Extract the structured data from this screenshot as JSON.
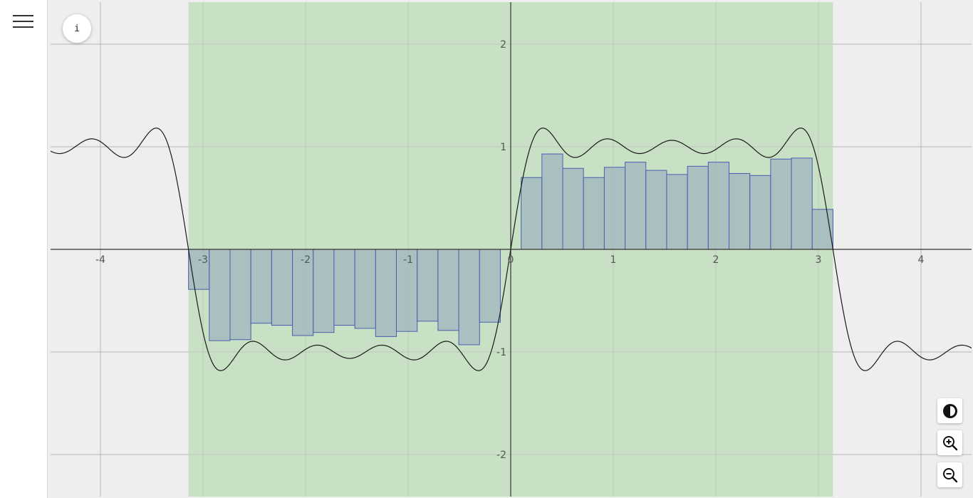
{
  "info_button": {
    "label": "i"
  },
  "toolbar": {
    "menu_icon": "hamburger-menu-icon",
    "contrast_icon": "contrast-icon",
    "zoom_in_icon": "zoom-in-icon",
    "zoom_out_icon": "zoom-out-icon"
  },
  "colors": {
    "plot_background": "#eeeeee",
    "shaded_interval": "#c8e0c4",
    "bar_fill": "#a4b9c0",
    "bar_stroke": "#4a5fb0",
    "curve": "#1a1a1a",
    "grid": "#b7b7b7",
    "axis": "#333333"
  },
  "chart_data": {
    "type": "bar",
    "title": "",
    "xlabel": "",
    "ylabel": "",
    "xlim": [
      -4.5,
      4.5
    ],
    "ylim": [
      -2.4,
      2.4
    ],
    "x_ticks": [
      -4,
      -3,
      -2,
      -1,
      0,
      1,
      2,
      3,
      4
    ],
    "y_ticks": [
      -2,
      -1,
      1,
      2
    ],
    "x_tick_labels": [
      "-4",
      "-3",
      "-2",
      "-1",
      "0",
      "1",
      "2",
      "3",
      "4"
    ],
    "y_tick_labels": [
      "-2",
      "-1",
      "1",
      "2"
    ],
    "grid": true,
    "shaded_interval": [
      -3.14159,
      3.14159
    ],
    "bar_width": 0.2027,
    "bars": [
      {
        "x0": -3.1416,
        "value": -0.39
      },
      {
        "x0": -2.9389,
        "value": -0.89
      },
      {
        "x0": -2.7362,
        "value": -0.88
      },
      {
        "x0": -2.5335,
        "value": -0.72
      },
      {
        "x0": -2.3308,
        "value": -0.74
      },
      {
        "x0": -2.1281,
        "value": -0.84
      },
      {
        "x0": -1.9254,
        "value": -0.81
      },
      {
        "x0": -1.7227,
        "value": -0.74
      },
      {
        "x0": -1.52,
        "value": -0.77
      },
      {
        "x0": -1.3173,
        "value": -0.85
      },
      {
        "x0": -1.1146,
        "value": -0.8
      },
      {
        "x0": -0.9119,
        "value": -0.7
      },
      {
        "x0": -0.7092,
        "value": -0.79
      },
      {
        "x0": -0.5065,
        "value": -0.93
      },
      {
        "x0": -0.3038,
        "value": -0.71
      },
      {
        "x0": 0.1016,
        "value": 0.7
      },
      {
        "x0": 0.3043,
        "value": 0.93
      },
      {
        "x0": 0.507,
        "value": 0.79
      },
      {
        "x0": 0.7097,
        "value": 0.7
      },
      {
        "x0": 0.9124,
        "value": 0.8
      },
      {
        "x0": 1.1151,
        "value": 0.85
      },
      {
        "x0": 1.3178,
        "value": 0.77
      },
      {
        "x0": 1.5205,
        "value": 0.73
      },
      {
        "x0": 1.7232,
        "value": 0.81
      },
      {
        "x0": 1.9259,
        "value": 0.85
      },
      {
        "x0": 2.1286,
        "value": 0.74
      },
      {
        "x0": 2.3313,
        "value": 0.72
      },
      {
        "x0": 2.534,
        "value": 0.88
      },
      {
        "x0": 2.7367,
        "value": 0.89
      },
      {
        "x0": 2.9394,
        "value": 0.39
      }
    ],
    "curve": {
      "type": "line",
      "x_range": [
        -4.5,
        4.5
      ],
      "fourier_sine_coefficients": [
        1.2732,
        0,
        0.4244,
        0,
        0.2546,
        0,
        0.1819,
        0,
        0.1415
      ]
    }
  }
}
